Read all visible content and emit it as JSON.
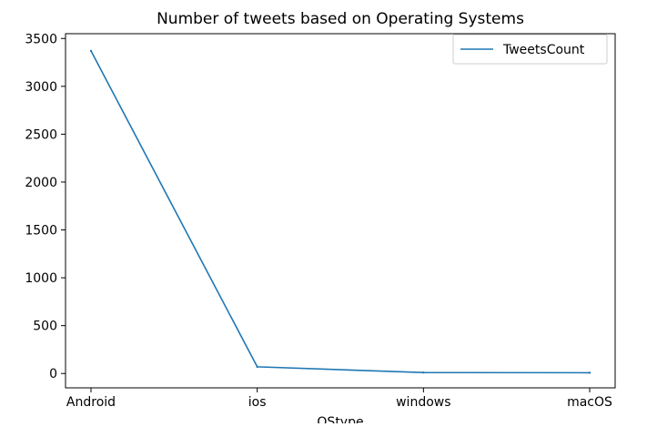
{
  "chart_data": {
    "type": "line",
    "title": "Number of tweets based on Operating Systems",
    "xlabel": "OStype",
    "ylabel": "",
    "categories": [
      "Android",
      "ios",
      "windows",
      "macOS"
    ],
    "series": [
      {
        "name": "TweetsCount",
        "values": [
          3370,
          70,
          10,
          8
        ]
      }
    ],
    "ylim": [
      -150,
      3550
    ],
    "yticks": [
      0,
      500,
      1000,
      1500,
      2000,
      2500,
      3000,
      3500
    ],
    "ytick_labels": [
      "0",
      "500",
      "1000",
      "1500",
      "2000",
      "2500",
      "3000",
      "3500"
    ],
    "grid": false,
    "legend_position": "top-right",
    "line_color": "#1f77b4"
  }
}
